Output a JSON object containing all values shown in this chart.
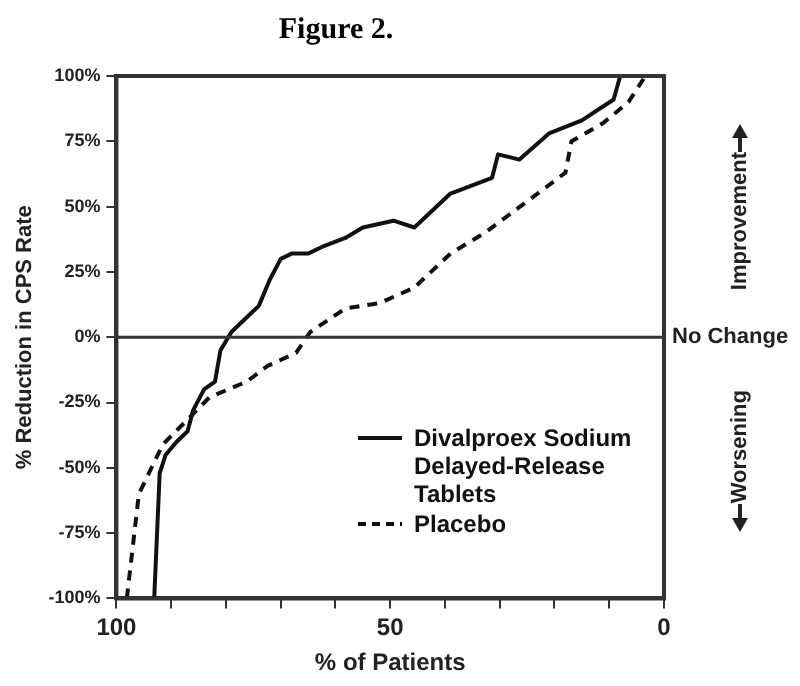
{
  "chart_data": {
    "type": "line",
    "title": "Figure 2.",
    "xlabel": "% of Patients",
    "ylabel": "% Reduction in CPS Rate",
    "xlim": [
      100,
      0
    ],
    "xticks": [
      100,
      {
        "value": 90,
        "label": null
      },
      {
        "value": 80,
        "label": null
      },
      {
        "value": 70,
        "label": null
      },
      {
        "value": 60,
        "label": null
      },
      50,
      {
        "value": 40,
        "label": null
      },
      {
        "value": 30,
        "label": null
      },
      {
        "value": 20,
        "label": null
      },
      {
        "value": 10,
        "label": null
      },
      0
    ],
    "ylim": [
      -100,
      100
    ],
    "yticks": [
      {
        "value": -100,
        "label": "-100%"
      },
      {
        "value": -75,
        "label": "-75%"
      },
      {
        "value": -50,
        "label": "-50%"
      },
      {
        "value": -25,
        "label": "-25%"
      },
      {
        "value": 0,
        "label": "0%"
      },
      {
        "value": 25,
        "label": "25%"
      },
      {
        "value": 50,
        "label": "50%"
      },
      {
        "value": 75,
        "label": "75%"
      },
      {
        "value": 100,
        "label": "100%"
      }
    ],
    "grid": false,
    "legend": "bottom right",
    "marker": "none",
    "ref_lines": [
      {
        "axis": "y",
        "value": 0,
        "label": "No Change"
      }
    ],
    "annotations": [
      "Improvement",
      "Worsening"
    ],
    "series": [
      {
        "name": "Divalproex Sodium Delayed-Release Tablets",
        "color": "#111111",
        "line_style": "solid",
        "x": [
          93.1,
          92.1,
          91,
          89,
          87,
          86,
          84,
          82,
          81,
          79,
          77,
          74,
          72,
          70,
          68,
          65,
          62,
          58.2,
          55,
          49.4,
          45.6,
          39,
          31.4,
          30.3,
          26.4,
          21,
          15,
          9.2,
          8
        ],
        "values": [
          -100,
          -52,
          -45,
          -40,
          -36,
          -28,
          -20,
          -17,
          -5,
          2,
          6,
          12,
          22,
          30,
          32,
          32,
          35,
          38,
          42,
          44.6,
          42,
          55,
          61,
          70,
          68,
          78,
          83,
          91,
          100
        ]
      },
      {
        "name": "Placebo",
        "color": "#111111",
        "line_style": "dashed",
        "x": [
          98.1,
          95.9,
          91.5,
          86.3,
          83,
          76.2,
          72.4,
          67.2,
          64.6,
          58.2,
          52,
          45.6,
          39,
          32.7,
          25,
          18,
          16.9,
          11.1,
          6.5,
          3.4
        ],
        "values": [
          -100,
          -60,
          -41,
          -30,
          -23,
          -17,
          -11,
          -6,
          2,
          11,
          13,
          19,
          32,
          40,
          52,
          63,
          75,
          82,
          90,
          100
        ]
      }
    ]
  }
}
